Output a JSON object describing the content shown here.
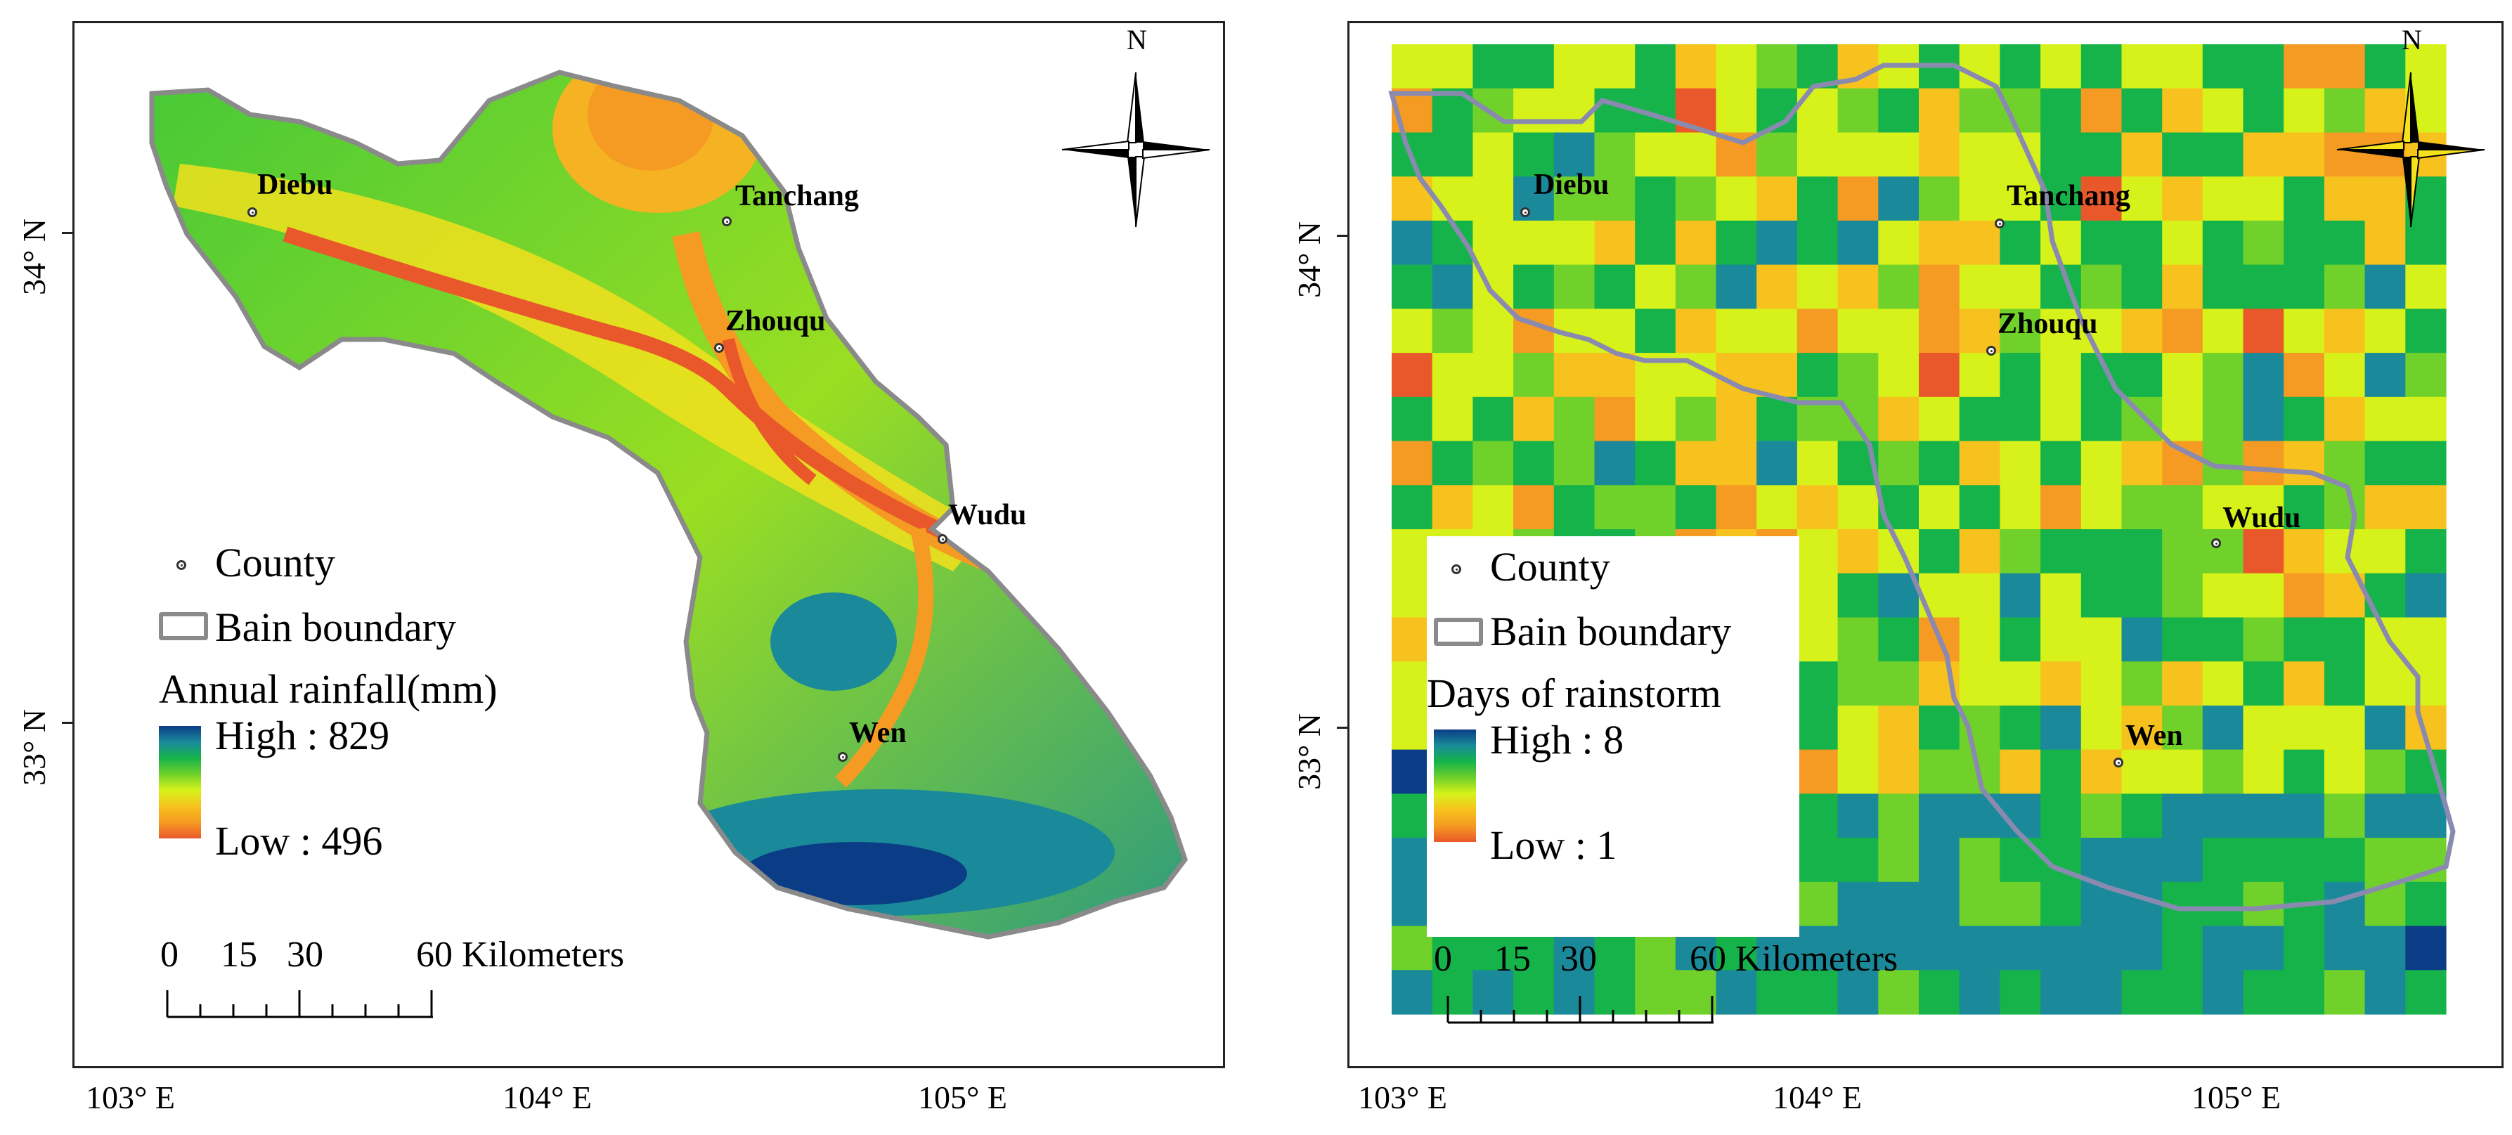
{
  "panels": [
    {
      "id": "rainfall",
      "legend": {
        "point_symbol": "County",
        "boundary_symbol": "Bain boundary",
        "raster_title": "Annual rainfall(mm)",
        "high_label": "High : 829",
        "low_label": "Low : 496",
        "high_color": "#0b3d86",
        "low_color": "#e9582a"
      },
      "counties": [
        "Diebu",
        "Tanchang",
        "Zhouqu",
        "Wudu",
        "Wen"
      ],
      "north_label": "N",
      "scale": {
        "ticks": [
          "0",
          "15",
          "30",
          "60 Kilometers"
        ]
      },
      "axes": {
        "lat_labels": [
          "34° N",
          "33° N"
        ],
        "lon_labels": [
          "103° E",
          "104° E",
          "105° E"
        ]
      }
    },
    {
      "id": "rainstorm",
      "legend": {
        "point_symbol": "County",
        "boundary_symbol": "Bain boundary",
        "raster_title": "Days of rainstorm",
        "high_label": "High : 8",
        "low_label": "Low : 1",
        "high_color": "#0b3d86",
        "low_color": "#e9582a"
      },
      "counties": [
        "Diebu",
        "Tanchang",
        "Zhouqu",
        "Wudu",
        "Wen"
      ],
      "north_label": "N",
      "scale": {
        "ticks": [
          "0",
          "15",
          "30",
          "60 Kilometers"
        ]
      },
      "axes": {
        "lat_labels": [
          "34° N",
          "33° N"
        ],
        "lon_labels": [
          "103° E",
          "104° E",
          "105° E"
        ]
      }
    }
  ],
  "colors": {
    "ramp": [
      "#0b3d86",
      "#1a8a9a",
      "#15b34a",
      "#6fd12a",
      "#d6f21a",
      "#f7c21d",
      "#f59a22",
      "#e9582a"
    ],
    "boundary": "#8a8a8a"
  }
}
